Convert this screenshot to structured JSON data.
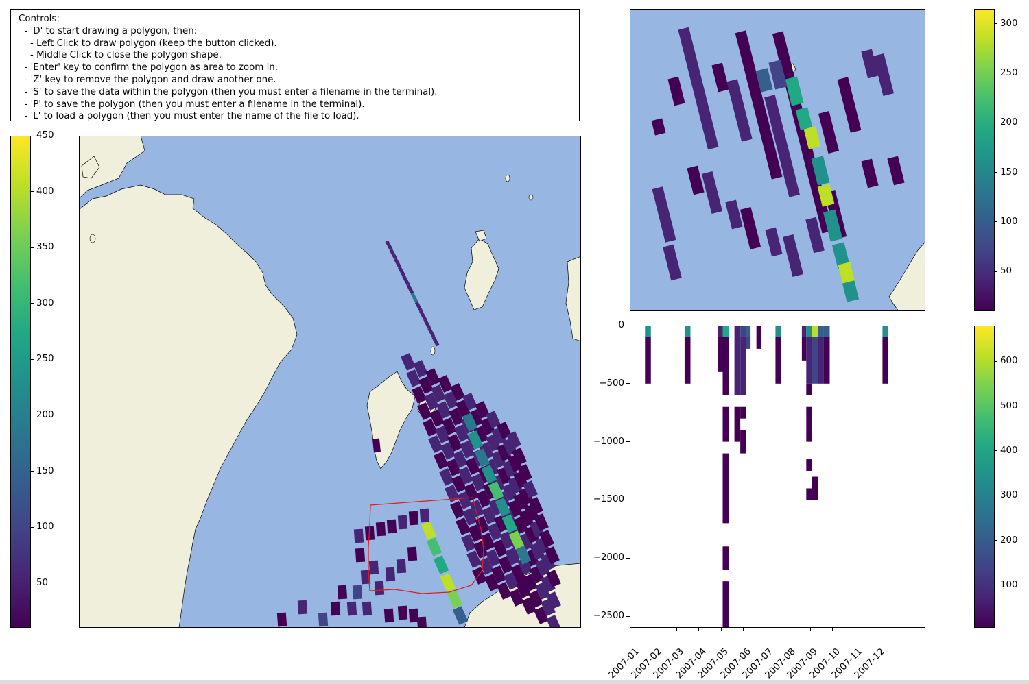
{
  "controls": {
    "text": "Controls:\n  - 'D' to start drawing a polygon, then:\n    - Left Click to draw polygon (keep the button clicked).\n    - Middle Click to close the polygon shape.\n  - 'Enter' key to confirm the polygon as area to zoom in.\n  - 'Z' key to remove the polygon and draw another one.\n  - 'S' to save the data within the polygon (then you must enter a filename in the terminal).\n  - 'P' to save the polygon (then you must enter a filename in the terminal).\n  - 'L' to load a polygon (then you must enter the name of the file to load)."
  },
  "colors": {
    "ocean": "#97b6e1",
    "land": "#efefdb",
    "polygon": "#e41a1c",
    "viridis_low": "#440154",
    "viridis_mid": "#21918c",
    "viridis_high": "#fde725"
  },
  "left_colorbar": {
    "ticks": [
      "50",
      "100",
      "150",
      "200",
      "250",
      "300",
      "350",
      "400",
      "450"
    ],
    "range": [
      10,
      450
    ]
  },
  "zoom_colorbar": {
    "ticks": [
      "50",
      "100",
      "150",
      "200",
      "250",
      "300"
    ],
    "range": [
      10,
      315
    ]
  },
  "depth_colorbar": {
    "ticks": [
      "100",
      "200",
      "300",
      "400",
      "500",
      "600"
    ],
    "range": [
      5,
      680
    ]
  },
  "depth_plot": {
    "y_ticks": [
      "0",
      "−500",
      "−1000",
      "−1500",
      "−2000",
      "−2500"
    ],
    "x_ticks": [
      "2007-01",
      "2007-02",
      "2007-03",
      "2007-04",
      "2007-05",
      "2007-06",
      "2007-07",
      "2007-08",
      "2007-09",
      "2007-10",
      "2007-11",
      "2007-12"
    ]
  },
  "chart_data": {
    "type": "heatmap",
    "title": "",
    "xlabel": "",
    "ylabel": "",
    "x_axis": "date",
    "xlim": [
      "2007-01-01",
      "2007-12-31"
    ],
    "ylim": [
      -2600,
      0
    ],
    "colorbar_range": [
      5,
      680
    ]
  }
}
